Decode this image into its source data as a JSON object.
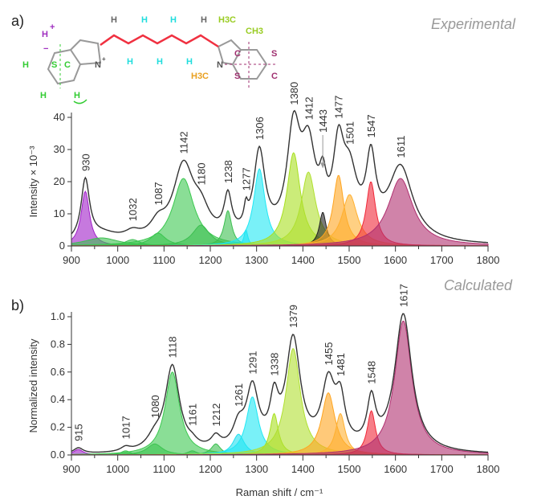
{
  "panels": {
    "a": "a)",
    "b": "b)"
  },
  "molecule": {
    "h_plus": "H",
    "plus": "+",
    "minus": "−",
    "h_left": "H",
    "s1": "S",
    "c1": "C",
    "h_bl": "H",
    "h_br": "H",
    "n1": "N",
    "n1_charge": "+",
    "chain_h": [
      "H",
      "H",
      "H",
      "H",
      "H",
      "H",
      "H"
    ],
    "h3c_top": "H3C",
    "ch3": "CH3",
    "n2": "N",
    "h3c_n": "H3C",
    "c2": "C",
    "s2": "S",
    "s3": "S",
    "c3": "C"
  },
  "chart_data": [
    {
      "type": "area",
      "title": "Experimental",
      "xlabel": "",
      "ylabel": "Intensity × 10⁻³",
      "xlim": [
        900,
        1800
      ],
      "ylim": [
        0,
        45
      ],
      "xticks": [
        900,
        1000,
        1100,
        1200,
        1300,
        1400,
        1500,
        1600,
        1700,
        1800
      ],
      "yticks": [
        0,
        10,
        20,
        30,
        40
      ],
      "components": [
        {
          "center": 930,
          "height": 17,
          "fwhm": 22,
          "color": "#a020c8"
        },
        {
          "center": 965,
          "height": 2.5,
          "fwhm": 90,
          "color": "#3cbf50"
        },
        {
          "center": 1032,
          "height": 2,
          "fwhm": 40,
          "color": "#3cbf50"
        },
        {
          "center": 1087,
          "height": 4,
          "fwhm": 40,
          "color": "#3cbf50"
        },
        {
          "center": 1142,
          "height": 21,
          "fwhm": 55,
          "color": "#3cc850"
        },
        {
          "center": 1180,
          "height": 6.5,
          "fwhm": 45,
          "color": "#3cbf50"
        },
        {
          "center": 1238,
          "height": 11,
          "fwhm": 20,
          "color": "#3cbf50"
        },
        {
          "center": 1277,
          "height": 5,
          "fwhm": 10,
          "color": "#20e0f0"
        },
        {
          "center": 1306,
          "height": 24,
          "fwhm": 30,
          "color": "#20e8f4"
        },
        {
          "center": 1380,
          "height": 29,
          "fwhm": 35,
          "color": "#a8e020"
        },
        {
          "center": 1412,
          "height": 23,
          "fwhm": 38,
          "color": "#b0e030"
        },
        {
          "center": 1443,
          "height": 10.5,
          "fwhm": 18,
          "color": "#222222"
        },
        {
          "center": 1477,
          "height": 22,
          "fwhm": 28,
          "color": "#ffa520"
        },
        {
          "center": 1501,
          "height": 16,
          "fwhm": 40,
          "color": "#ffb030"
        },
        {
          "center": 1547,
          "height": 20,
          "fwhm": 25,
          "color": "#f02838"
        },
        {
          "center": 1611,
          "height": 21,
          "fwhm": 65,
          "color": "#b03070"
        }
      ],
      "peak_labels": [
        {
          "x": 930,
          "text": "930"
        },
        {
          "x": 1032,
          "text": "1032"
        },
        {
          "x": 1087,
          "text": "1087"
        },
        {
          "x": 1142,
          "text": "1142"
        },
        {
          "x": 1180,
          "text": "1180"
        },
        {
          "x": 1238,
          "text": "1238"
        },
        {
          "x": 1277,
          "text": "1277"
        },
        {
          "x": 1306,
          "text": "1306"
        },
        {
          "x": 1380,
          "text": "1380"
        },
        {
          "x": 1412,
          "text": "1412"
        },
        {
          "x": 1443,
          "text": "1443",
          "muted": true
        },
        {
          "x": 1477,
          "text": "1477"
        },
        {
          "x": 1501,
          "text": "1501"
        },
        {
          "x": 1547,
          "text": "1547"
        },
        {
          "x": 1611,
          "text": "1611"
        }
      ]
    },
    {
      "type": "area",
      "title": "Calculated",
      "xlabel": "Raman shift / cm⁻¹",
      "ylabel": "Normalized intensity",
      "xlim": [
        900,
        1800
      ],
      "ylim": [
        0,
        1.05
      ],
      "xticks": [
        900,
        1000,
        1100,
        1200,
        1300,
        1400,
        1500,
        1600,
        1700,
        1800
      ],
      "yticks": [
        0.0,
        0.2,
        0.4,
        0.6,
        0.8,
        1.0
      ],
      "components": [
        {
          "center": 915,
          "height": 0.04,
          "fwhm": 25,
          "color": "#a020c8"
        },
        {
          "center": 1017,
          "height": 0.03,
          "fwhm": 25,
          "color": "#3cbf50"
        },
        {
          "center": 1080,
          "height": 0.08,
          "fwhm": 40,
          "color": "#3cbf50"
        },
        {
          "center": 1118,
          "height": 0.6,
          "fwhm": 38,
          "color": "#3cc850"
        },
        {
          "center": 1161,
          "height": 0.03,
          "fwhm": 25,
          "color": "#3cbf50"
        },
        {
          "center": 1212,
          "height": 0.08,
          "fwhm": 25,
          "color": "#3cbf50"
        },
        {
          "center": 1261,
          "height": 0.15,
          "fwhm": 30,
          "color": "#20e0f0"
        },
        {
          "center": 1291,
          "height": 0.42,
          "fwhm": 32,
          "color": "#20e8f4"
        },
        {
          "center": 1338,
          "height": 0.3,
          "fwhm": 22,
          "color": "#a8e020"
        },
        {
          "center": 1379,
          "height": 0.77,
          "fwhm": 38,
          "color": "#b0e030"
        },
        {
          "center": 1455,
          "height": 0.45,
          "fwhm": 35,
          "color": "#ffa520"
        },
        {
          "center": 1481,
          "height": 0.3,
          "fwhm": 25,
          "color": "#ffb030"
        },
        {
          "center": 1548,
          "height": 0.32,
          "fwhm": 22,
          "color": "#f02838"
        },
        {
          "center": 1617,
          "height": 0.97,
          "fwhm": 45,
          "color": "#b03070"
        }
      ],
      "peak_labels": [
        {
          "x": 915,
          "text": "915"
        },
        {
          "x": 1017,
          "text": "1017"
        },
        {
          "x": 1080,
          "text": "1080"
        },
        {
          "x": 1118,
          "text": "1118"
        },
        {
          "x": 1161,
          "text": "1161"
        },
        {
          "x": 1212,
          "text": "1212"
        },
        {
          "x": 1261,
          "text": "1261"
        },
        {
          "x": 1291,
          "text": "1291"
        },
        {
          "x": 1338,
          "text": "1338"
        },
        {
          "x": 1379,
          "text": "1379"
        },
        {
          "x": 1455,
          "text": "1455"
        },
        {
          "x": 1481,
          "text": "1481"
        },
        {
          "x": 1548,
          "text": "1548"
        },
        {
          "x": 1617,
          "text": "1617"
        }
      ]
    }
  ]
}
